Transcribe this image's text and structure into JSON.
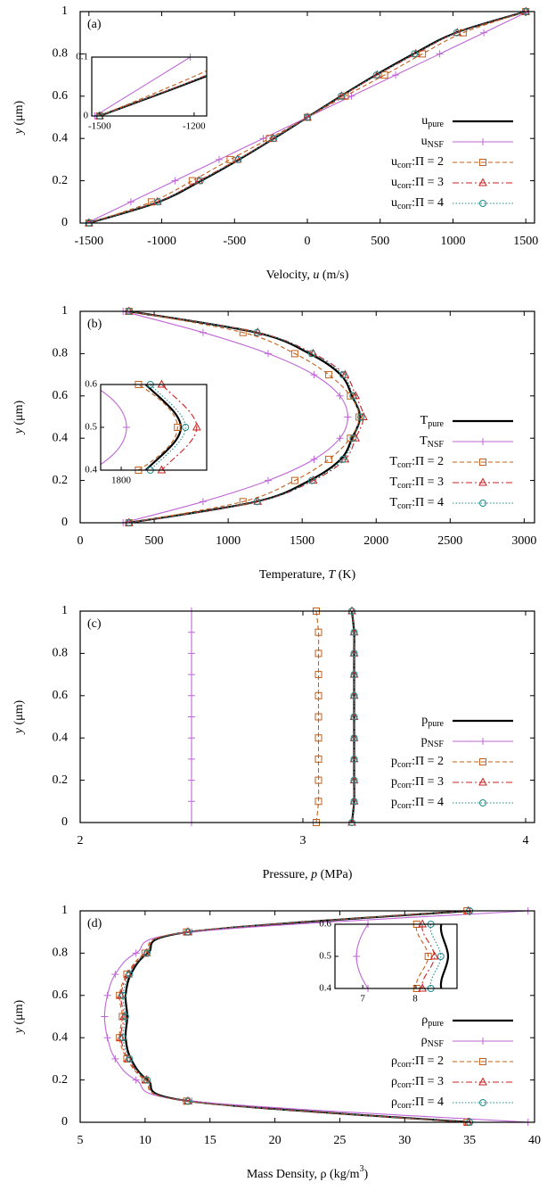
{
  "chart_data": [
    {
      "type": "line",
      "panel_label": "(a)",
      "xlabel": [
        {
          "text": "Velocity, "
        },
        {
          "text": "u",
          "italic": true
        },
        {
          "text": " (m/s)"
        }
      ],
      "ylabel": [
        {
          "text": "y",
          "italic": true
        },
        {
          "text": " (μm)"
        }
      ],
      "y": [
        0,
        0.1,
        0.2,
        0.3,
        0.4,
        0.5,
        0.6,
        0.7,
        0.8,
        0.9,
        1
      ],
      "xlim": [
        -1560,
        1560
      ],
      "xticks": [
        -1500,
        -1000,
        -500,
        0,
        500,
        1000,
        1500
      ],
      "ylim": [
        0,
        1
      ],
      "yticks": [
        0,
        0.2,
        0.4,
        0.6,
        0.8,
        1
      ],
      "legend": "lower right",
      "series": [
        {
          "name": {
            "base": "u",
            "sub": "pure"
          },
          "color": "#000000",
          "linestyle": "solid",
          "marker": "none",
          "values": [
            -1500,
            -1020,
            -730,
            -470,
            -230,
            0,
            230,
            470,
            730,
            1020,
            1500
          ]
        },
        {
          "name": {
            "base": "u",
            "sub": "NSF"
          },
          "color": "#bf66d6",
          "linestyle": "solid",
          "marker": "plus",
          "values": [
            -1515,
            -1212,
            -909,
            -606,
            -303,
            0,
            303,
            606,
            909,
            1212,
            1515
          ]
        },
        {
          "name": {
            "base": "u",
            "sub": "corr",
            "rest": ":Π = 2"
          },
          "color": "#c0601c",
          "linestyle": "dashed",
          "marker": "square",
          "values": [
            -1500,
            -1070,
            -790,
            -530,
            -260,
            0,
            260,
            530,
            790,
            1070,
            1500
          ]
        },
        {
          "name": {
            "base": "u",
            "sub": "corr",
            "rest": ":Π = 3"
          },
          "color": "#c82020",
          "linestyle": "dashdot",
          "marker": "triangle",
          "values": [
            -1500,
            -1030,
            -745,
            -480,
            -235,
            0,
            235,
            480,
            745,
            1030,
            1500
          ]
        },
        {
          "name": {
            "base": "u",
            "sub": "corr",
            "rest": ":Π = 4"
          },
          "color": "#1f8a8a",
          "linestyle": "dotted",
          "marker": "circle",
          "values": [
            -1500,
            -1025,
            -735,
            -475,
            -232,
            0,
            232,
            475,
            735,
            1025,
            1500
          ]
        }
      ],
      "inset": {
        "xlim": [
          -1525,
          -1160
        ],
        "xticks": [
          -1500,
          -1200
        ],
        "ylim": [
          0,
          0.1
        ],
        "yticks": [
          0,
          0.1
        ]
      }
    },
    {
      "type": "line",
      "panel_label": "(b)",
      "xlabel": [
        {
          "text": "Temperature, "
        },
        {
          "text": "T",
          "italic": true
        },
        {
          "text": " (K)"
        }
      ],
      "ylabel": [
        {
          "text": "y",
          "italic": true
        },
        {
          "text": " (μm)"
        }
      ],
      "y": [
        0,
        0.1,
        0.2,
        0.3,
        0.4,
        0.5,
        0.6,
        0.7,
        0.8,
        0.9,
        1
      ],
      "xlim": [
        0,
        3070
      ],
      "xticks": [
        0,
        500,
        1000,
        1500,
        2000,
        2500,
        3000
      ],
      "ylim": [
        0,
        1
      ],
      "yticks": [
        0,
        0.2,
        0.4,
        0.6,
        0.8,
        1
      ],
      "legend": "lower right",
      "series": [
        {
          "name": {
            "base": "T",
            "sub": "pure"
          },
          "color": "#000000",
          "linestyle": "solid",
          "marker": "none",
          "values": [
            330,
            1190,
            1550,
            1760,
            1837,
            1890,
            1837,
            1760,
            1550,
            1190,
            330
          ]
        },
        {
          "name": {
            "base": "T",
            "sub": "NSF"
          },
          "color": "#bf66d6",
          "linestyle": "solid",
          "marker": "plus",
          "values": [
            290,
            830,
            1270,
            1580,
            1755,
            1808,
            1755,
            1580,
            1270,
            830,
            290
          ]
        },
        {
          "name": {
            "base": "T",
            "sub": "corr",
            "rest": ":Π = 2"
          },
          "color": "#c0601c",
          "linestyle": "dashed",
          "marker": "square",
          "values": [
            330,
            1100,
            1450,
            1680,
            1826,
            1885,
            1826,
            1680,
            1450,
            1100,
            330
          ]
        },
        {
          "name": {
            "base": "T",
            "sub": "corr",
            "rest": ":Π = 3"
          },
          "color": "#c82020",
          "linestyle": "dashdot",
          "marker": "triangle",
          "values": [
            330,
            1200,
            1575,
            1790,
            1861,
            1914,
            1861,
            1790,
            1575,
            1200,
            330
          ]
        },
        {
          "name": {
            "base": "T",
            "sub": "corr",
            "rest": ":Π = 4"
          },
          "color": "#1f8a8a",
          "linestyle": "dotted",
          "marker": "circle",
          "values": [
            330,
            1195,
            1565,
            1775,
            1844,
            1897,
            1844,
            1775,
            1565,
            1195,
            330
          ]
        }
      ],
      "inset": {
        "xlim": [
          1769,
          1929
        ],
        "xticks": [
          1800
        ],
        "ylim": [
          0.4,
          0.6
        ],
        "yticks": [
          0.4,
          0.5,
          0.6
        ]
      }
    },
    {
      "type": "line",
      "panel_label": "(c)",
      "xlabel": [
        {
          "text": "Pressure, "
        },
        {
          "text": "p",
          "italic": true
        },
        {
          "text": " (MPa)"
        }
      ],
      "ylabel": [
        {
          "text": "y",
          "italic": true
        },
        {
          "text": " (μm)"
        }
      ],
      "y": [
        0,
        0.1,
        0.2,
        0.3,
        0.4,
        0.5,
        0.6,
        0.7,
        0.8,
        0.9,
        1
      ],
      "xlim": [
        2,
        4.04
      ],
      "xticks": [
        2,
        3,
        4
      ],
      "ylim": [
        0,
        1
      ],
      "yticks": [
        0,
        0.2,
        0.4,
        0.6,
        0.8,
        1
      ],
      "legend": "lower right",
      "series": [
        {
          "name": {
            "base": "p",
            "sub": "pure"
          },
          "color": "#000000",
          "linestyle": "solid",
          "marker": "none",
          "values": [
            3.22,
            3.23,
            3.23,
            3.23,
            3.23,
            3.23,
            3.23,
            3.23,
            3.23,
            3.23,
            3.22
          ]
        },
        {
          "name": {
            "base": "p",
            "sub": "NSF"
          },
          "color": "#bf66d6",
          "linestyle": "solid",
          "marker": "plus",
          "values": [
            2.5,
            2.5,
            2.5,
            2.5,
            2.5,
            2.5,
            2.5,
            2.5,
            2.5,
            2.5,
            2.5
          ]
        },
        {
          "name": {
            "base": "p",
            "sub": "corr",
            "rest": ":Π = 2"
          },
          "color": "#c0601c",
          "linestyle": "dashed",
          "marker": "square",
          "values": [
            3.06,
            3.07,
            3.07,
            3.07,
            3.07,
            3.07,
            3.07,
            3.07,
            3.07,
            3.07,
            3.06
          ]
        },
        {
          "name": {
            "base": "p",
            "sub": "corr",
            "rest": ":Π = 3"
          },
          "color": "#c82020",
          "linestyle": "dashdot",
          "marker": "triangle",
          "values": [
            3.22,
            3.23,
            3.23,
            3.23,
            3.23,
            3.23,
            3.23,
            3.23,
            3.23,
            3.23,
            3.22
          ]
        },
        {
          "name": {
            "base": "p",
            "sub": "corr",
            "rest": ":Π = 4"
          },
          "color": "#1f8a8a",
          "linestyle": "dotted",
          "marker": "circle",
          "values": [
            3.22,
            3.23,
            3.23,
            3.23,
            3.23,
            3.23,
            3.23,
            3.23,
            3.23,
            3.23,
            3.22
          ]
        }
      ]
    },
    {
      "type": "line",
      "panel_label": "(d)",
      "xlabel": [
        {
          "text": "Mass Density, ρ (kg/m"
        },
        {
          "text": "3",
          "sup": true
        },
        {
          "text": ")"
        }
      ],
      "ylabel": [
        {
          "text": "y",
          "italic": true
        },
        {
          "text": " (μm)"
        }
      ],
      "y": [
        0,
        0.1,
        0.2,
        0.3,
        0.4,
        0.5,
        0.6,
        0.7,
        0.8,
        0.9,
        1
      ],
      "xlim": [
        5,
        40
      ],
      "xticks": [
        5,
        10,
        15,
        20,
        25,
        30,
        35,
        40
      ],
      "ylim": [
        0,
        1
      ],
      "yticks": [
        0,
        0.2,
        0.4,
        0.6,
        0.8,
        1
      ],
      "legend": "lower right",
      "series": [
        {
          "name": {
            "base": "ρ",
            "sub": "pure"
          },
          "color": "#000000",
          "linestyle": "solid",
          "marker": "none",
          "values": [
            35,
            13.4,
            10.2,
            8.9,
            8.5,
            8.63,
            8.5,
            8.9,
            10.2,
            13.4,
            35
          ]
        },
        {
          "name": {
            "base": "ρ",
            "sub": "NSF"
          },
          "color": "#bf66d6",
          "linestyle": "solid",
          "marker": "plus",
          "values": [
            39.5,
            13.6,
            9.3,
            7.7,
            7.1,
            6.88,
            7.1,
            7.7,
            9.3,
            13.6,
            39.5
          ]
        },
        {
          "name": {
            "base": "ρ",
            "sub": "corr",
            "rest": ":Π = 2"
          },
          "color": "#c0601c",
          "linestyle": "dashed",
          "marker": "square",
          "values": [
            34.8,
            13.2,
            10,
            8.6,
            8.03,
            8.25,
            8.03,
            8.6,
            10,
            13.2,
            34.8
          ]
        },
        {
          "name": {
            "base": "ρ",
            "sub": "corr",
            "rest": ":Π = 3"
          },
          "color": "#c82020",
          "linestyle": "dashdot",
          "marker": "triangle",
          "values": [
            34.9,
            13.3,
            10.1,
            8.7,
            8.14,
            8.37,
            8.14,
            8.7,
            10.1,
            13.3,
            34.9
          ]
        },
        {
          "name": {
            "base": "ρ",
            "sub": "corr",
            "rest": ":Π = 4"
          },
          "color": "#1f8a8a",
          "linestyle": "dotted",
          "marker": "circle",
          "values": [
            35,
            13.3,
            10.15,
            8.8,
            8.3,
            8.49,
            8.3,
            8.8,
            10.15,
            13.3,
            35
          ]
        }
      ],
      "inset": {
        "xlim": [
          6.47,
          8.8
        ],
        "xticks": [
          7,
          8
        ],
        "ylim": [
          0.4,
          0.6
        ],
        "yticks": [
          0.4,
          0.5,
          0.6
        ]
      }
    }
  ]
}
